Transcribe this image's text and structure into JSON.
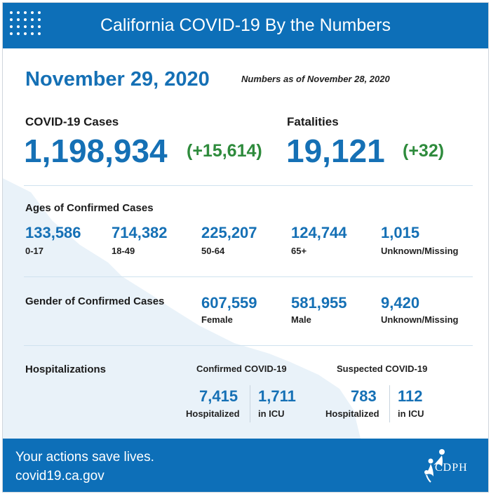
{
  "header": {
    "title": "California COVID-19 By the Numbers"
  },
  "date": "November 29, 2020",
  "as_of": "Numbers as of November 28, 2020",
  "cases": {
    "label": "COVID-19 Cases",
    "value": "1,198,934",
    "change": "(+15,614)"
  },
  "fatalities": {
    "label": "Fatalities",
    "value": "19,121",
    "change": "(+32)"
  },
  "ages": {
    "title": "Ages of Confirmed Cases",
    "items": [
      {
        "value": "133,586",
        "label": "0-17"
      },
      {
        "value": "714,382",
        "label": "18-49"
      },
      {
        "value": "225,207",
        "label": "50-64"
      },
      {
        "value": "124,744",
        "label": "65+"
      },
      {
        "value": "1,015",
        "label": "Unknown/Missing"
      }
    ]
  },
  "gender": {
    "title": "Gender of Confirmed Cases",
    "items": [
      {
        "value": "607,559",
        "label": "Female"
      },
      {
        "value": "581,955",
        "label": "Male"
      },
      {
        "value": "9,420",
        "label": "Unknown/Missing"
      }
    ]
  },
  "hospitalizations": {
    "title": "Hospitalizations",
    "confirmed": {
      "title": "Confirmed COVID-19",
      "hospitalized": {
        "value": "7,415",
        "label": "Hospitalized"
      },
      "icu": {
        "value": "1,711",
        "label": "in ICU"
      }
    },
    "suspected": {
      "title": "Suspected COVID-19",
      "hospitalized": {
        "value": "783",
        "label": "Hospitalized"
      },
      "icu": {
        "value": "112",
        "label": "in ICU"
      }
    }
  },
  "footer": {
    "line1": "Your actions save lives.",
    "line2": "covid19.ca.gov",
    "logo_text": "CDPH"
  },
  "colors": {
    "brand_blue": "#0d6fb8",
    "value_blue": "#1570b5",
    "change_green": "#2e8b3c"
  }
}
